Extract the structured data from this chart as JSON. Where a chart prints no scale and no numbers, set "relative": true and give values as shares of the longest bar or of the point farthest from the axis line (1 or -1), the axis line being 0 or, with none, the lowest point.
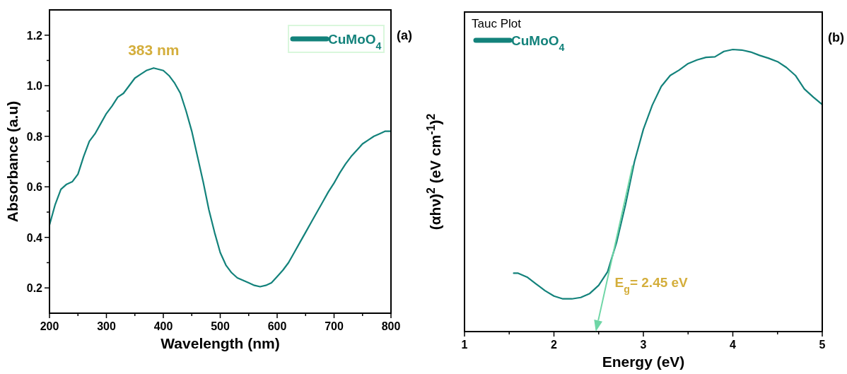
{
  "chart_data": [
    {
      "type": "line",
      "xlabel": "Wavelength (nm)",
      "ylabel": "Absorbance (a.u)",
      "xlim": [
        200,
        800
      ],
      "ylim": [
        0.1,
        1.3
      ],
      "xticks": [
        200,
        {
          "value": 250,
          "label": null
        },
        300,
        {
          "value": 350,
          "label": null
        },
        400,
        {
          "value": 450,
          "label": null
        },
        500,
        {
          "value": 550,
          "label": null
        },
        600,
        {
          "value": 650,
          "label": null
        },
        700,
        {
          "value": 750,
          "label": null
        },
        800
      ],
      "yticks": [
        {
          "value": 0.2,
          "label": "0.2"
        },
        {
          "value": 0.3,
          "label": null
        },
        {
          "value": 0.4,
          "label": "0.4"
        },
        {
          "value": 0.5,
          "label": null
        },
        {
          "value": 0.6,
          "label": "0.6"
        },
        {
          "value": 0.7,
          "label": null
        },
        {
          "value": 0.8,
          "label": "0.8"
        },
        {
          "value": 0.9,
          "label": null
        },
        {
          "value": 1.0,
          "label": "1.0"
        },
        {
          "value": 1.1,
          "label": null
        },
        {
          "value": 1.2,
          "label": "1.2"
        }
      ],
      "x": [
        200,
        210,
        220,
        230,
        240,
        250,
        260,
        270,
        280,
        290,
        300,
        310,
        320,
        330,
        340,
        350,
        360,
        370,
        383,
        400,
        410,
        420,
        430,
        440,
        450,
        460,
        470,
        480,
        490,
        500,
        510,
        520,
        530,
        540,
        550,
        560,
        570,
        580,
        590,
        600,
        610,
        620,
        630,
        640,
        650,
        660,
        670,
        680,
        690,
        700,
        710,
        720,
        730,
        740,
        750,
        760,
        770,
        780,
        790,
        800
      ],
      "series": [
        {
          "name": "CuMoO$_{4}$",
          "color": "#13827b",
          "values": [
            0.449,
            0.53,
            0.59,
            0.61,
            0.62,
            0.65,
            0.72,
            0.78,
            0.81,
            0.85,
            0.89,
            0.92,
            0.955,
            0.97,
            1.0,
            1.03,
            1.045,
            1.06,
            1.07,
            1.06,
            1.04,
            1.01,
            0.97,
            0.9,
            0.82,
            0.72,
            0.62,
            0.51,
            0.42,
            0.34,
            0.29,
            0.26,
            0.24,
            0.23,
            0.22,
            0.21,
            0.205,
            0.21,
            0.22,
            0.245,
            0.27,
            0.3,
            0.34,
            0.38,
            0.42,
            0.46,
            0.5,
            0.54,
            0.58,
            0.615,
            0.655,
            0.69,
            0.72,
            0.745,
            0.77,
            0.785,
            0.8,
            0.81,
            0.82,
            0.82
          ]
        }
      ],
      "legend": "top right",
      "line_style": "solid",
      "grid": false,
      "annotations": [
        {
          "text": "383 nm",
          "x": 383,
          "y": 1.07
        },
        "(a)"
      ]
    },
    {
      "type": "line",
      "xlabel": "Energy (eV)",
      "ylabel": "(αhν)$^{2}$ (eV cm$^{-1}$)$^{2}$",
      "relative": true,
      "xlim": [
        1,
        5
      ],
      "xticks": [
        1,
        {
          "value": 1.5,
          "label": null
        },
        2,
        {
          "value": 2.5,
          "label": null
        },
        3,
        {
          "value": 3.5,
          "label": null
        },
        4,
        {
          "value": 4.5,
          "label": null
        },
        5
      ],
      "x": [
        1.55,
        1.6,
        1.7,
        1.8,
        1.9,
        2.0,
        2.1,
        2.2,
        2.3,
        2.4,
        2.5,
        2.6,
        2.7,
        2.8,
        2.9,
        3.0,
        3.1,
        3.2,
        3.3,
        3.4,
        3.5,
        3.6,
        3.7,
        3.8,
        3.9,
        4.0,
        4.1,
        4.2,
        4.3,
        4.4,
        4.5,
        4.6,
        4.7,
        4.8,
        4.9,
        5.0
      ],
      "series": [
        {
          "name": "CuMoO$_{4}$",
          "color": "#13827b",
          "values": [
            0.207,
            0.207,
            0.193,
            0.169,
            0.145,
            0.126,
            0.116,
            0.116,
            0.121,
            0.135,
            0.164,
            0.212,
            0.316,
            0.45,
            0.602,
            0.717,
            0.803,
            0.869,
            0.908,
            0.927,
            0.95,
            0.963,
            0.972,
            0.974,
            0.993,
            1,
            0.998,
            0.991,
            0.979,
            0.969,
            0.957,
            0.936,
            0.908,
            0.86,
            0.831,
            0.805
          ]
        }
      ],
      "legend": "top left",
      "legend_title": "Tauc Plot",
      "line_style": "solid",
      "grid": false,
      "annotations": [
        "E$_{g}$= 2.45 eV",
        "(b)"
      ]
    }
  ]
}
